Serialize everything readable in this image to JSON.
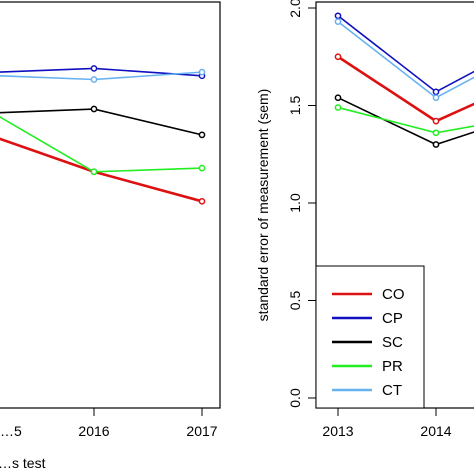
{
  "chart_data": [
    {
      "type": "line",
      "xlabel": "…s test",
      "x": [
        "…5",
        "2016",
        "2017"
      ],
      "series": [
        {
          "name": "CO",
          "color": "#dd1111",
          "values": [
            0.73,
            0.64,
            0.56
          ]
        },
        {
          "name": "CP",
          "color": "#1010c0",
          "values": [
            0.91,
            0.92,
            0.9
          ]
        },
        {
          "name": "SC",
          "color": "#000000",
          "values": [
            0.8,
            0.81,
            0.74
          ]
        },
        {
          "name": "PR",
          "color": "#22ee22",
          "values": [
            0.79,
            0.64,
            0.65
          ]
        },
        {
          "name": "CT",
          "color": "#66b2f0",
          "values": [
            0.9,
            0.89,
            0.91
          ]
        }
      ],
      "ylim": [
        0.0,
        1.1
      ]
    },
    {
      "type": "line",
      "ylabel": "standard error of measurement (sem)",
      "x": [
        "2013",
        "2014"
      ],
      "yticks": [
        "0.0",
        "0.5",
        "1.0",
        "1.5",
        "2.0"
      ],
      "ylim": [
        0.0,
        2.0
      ],
      "series": [
        {
          "name": "CO",
          "color": "#dd1111",
          "values": [
            1.75,
            1.42
          ]
        },
        {
          "name": "CP",
          "color": "#1010c0",
          "values": [
            1.96,
            1.57
          ]
        },
        {
          "name": "SC",
          "color": "#000000",
          "values": [
            1.54,
            1.3
          ]
        },
        {
          "name": "PR",
          "color": "#22ee22",
          "values": [
            1.49,
            1.36
          ]
        },
        {
          "name": "CT",
          "color": "#66b2f0",
          "values": [
            1.93,
            1.54
          ]
        }
      ],
      "legend": "bottom-left",
      "legend_entries": [
        "CO",
        "CP",
        "SC",
        "PR",
        "CT"
      ]
    }
  ]
}
